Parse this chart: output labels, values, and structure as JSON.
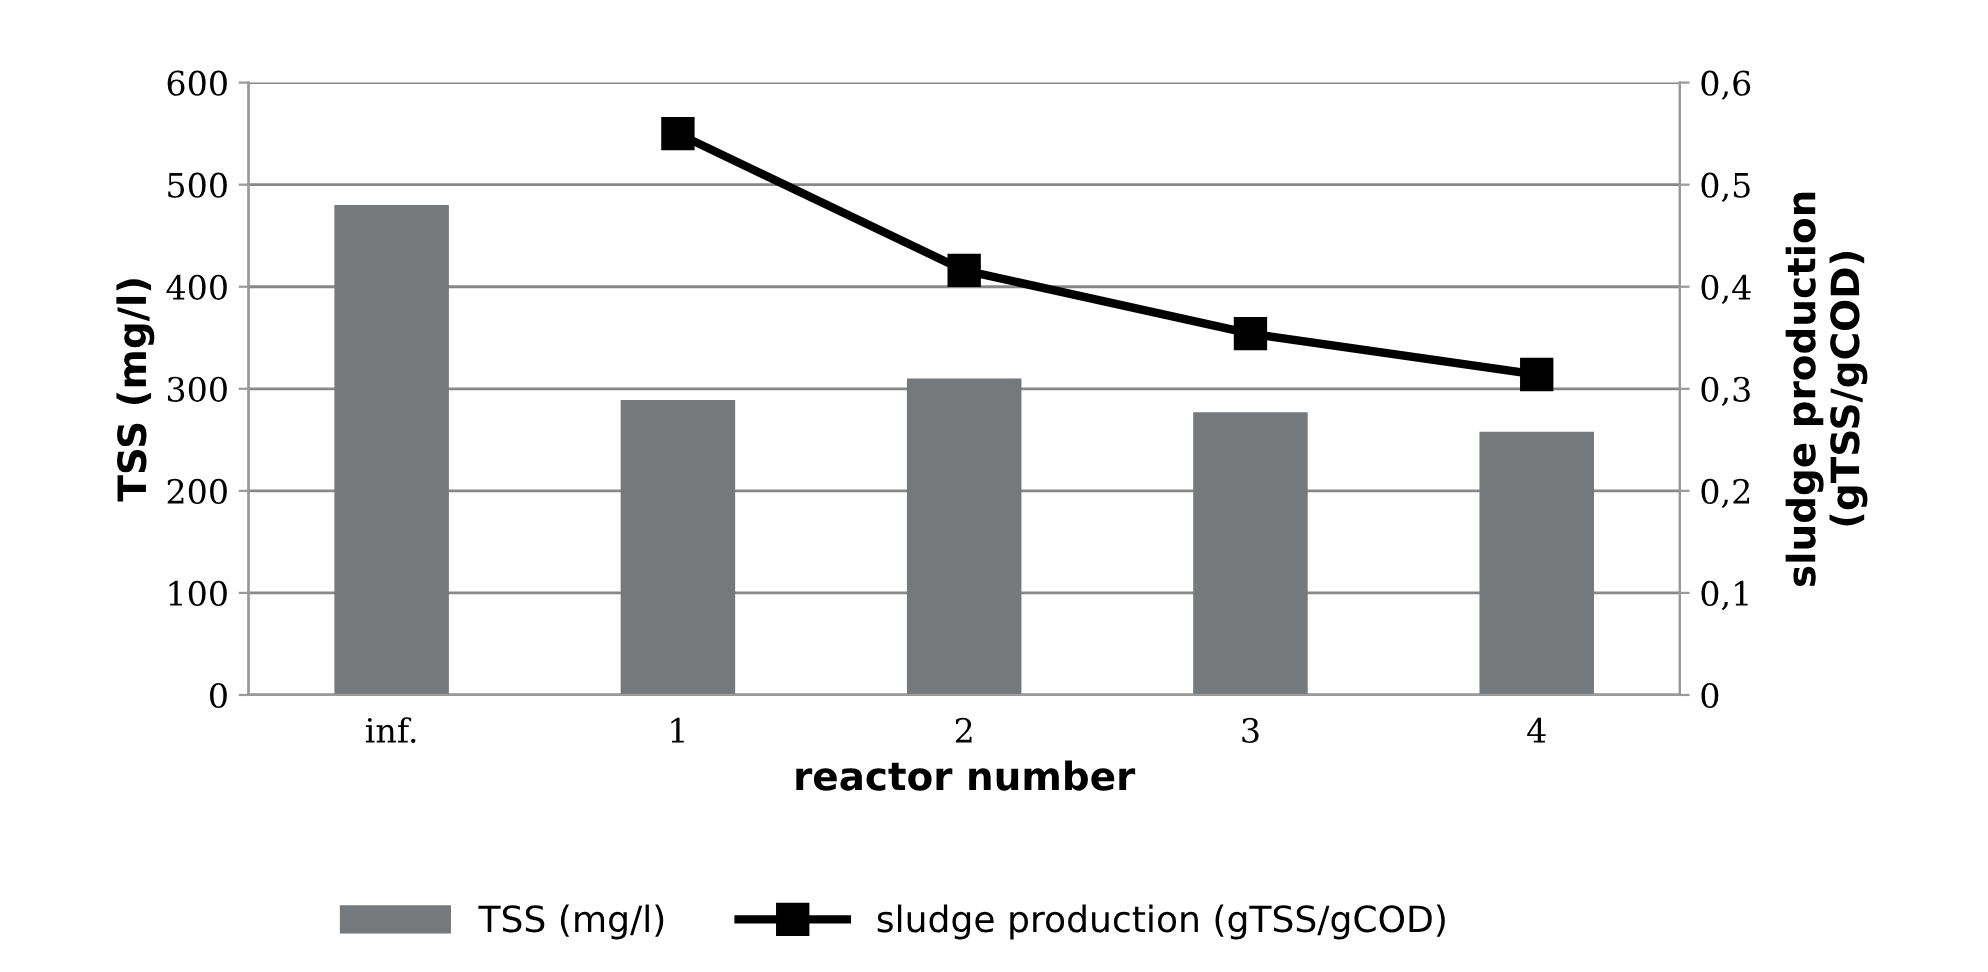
{
  "chart_data": {
    "type": "bar",
    "xlabel": "reactor number",
    "ylabel": "TSS (mg/l)",
    "y2label": "sludge production\n(gTSS/gCOD)",
    "categories": [
      "inf.",
      "1",
      "2",
      "3",
      "4"
    ],
    "series": [
      {
        "name": "TSS (mg/l)",
        "color": "#76797b",
        "values": [
          480,
          289,
          310,
          277,
          258
        ]
      },
      {
        "name": "sludge production (gTSS/gCOD)",
        "type": "line",
        "axis": "y2",
        "color": "#000000",
        "marker": "square",
        "line_style": "solid",
        "values": [
          null,
          0.55,
          0.416,
          0.354,
          0.314
        ]
      }
    ],
    "ylim": [
      0,
      600
    ],
    "yticks": [
      0,
      100,
      200,
      300,
      400,
      500,
      600
    ],
    "y2lim": [
      0,
      0.6
    ],
    "y2ticks": [
      {
        "value": 0,
        "label": "0"
      },
      {
        "value": 0.1,
        "label": "0,1"
      },
      {
        "value": 0.2,
        "label": "0,2"
      },
      {
        "value": 0.3,
        "label": "0,3"
      },
      {
        "value": 0.4,
        "label": "0,4"
      },
      {
        "value": 0.5,
        "label": "0,5"
      },
      {
        "value": 0.6,
        "label": "0,6"
      }
    ],
    "grid": "y",
    "legend": "bottom"
  }
}
